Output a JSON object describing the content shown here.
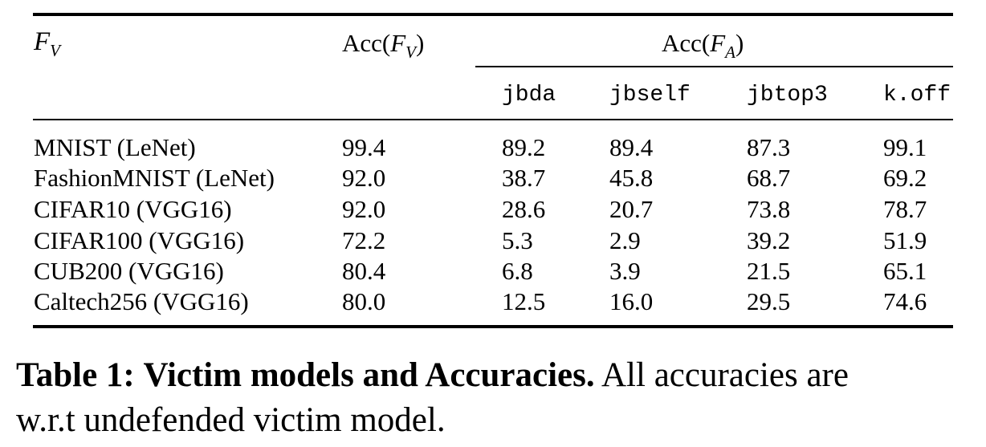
{
  "table": {
    "header": {
      "fv_symbol": "F",
      "fv_sub": "V",
      "acc_fv_prefix": "Acc(",
      "acc_fv_symbol": "F",
      "acc_fv_sub": "V",
      "acc_fv_suffix": ")",
      "acc_fa_prefix": "Acc(",
      "acc_fa_symbol": "F",
      "acc_fa_sub": "A",
      "acc_fa_suffix": ")",
      "methods": [
        "jbda",
        "jbself",
        "jbtop3",
        "k.off"
      ]
    },
    "rows": [
      {
        "model": "MNIST (LeNet)",
        "acc_fv": "99.4",
        "jbda": "89.2",
        "jbself": "89.4",
        "jbtop3": "87.3",
        "koff": "99.1"
      },
      {
        "model": "FashionMNIST (LeNet)",
        "acc_fv": "92.0",
        "jbda": "38.7",
        "jbself": "45.8",
        "jbtop3": "68.7",
        "koff": "69.2"
      },
      {
        "model": "CIFAR10 (VGG16)",
        "acc_fv": "92.0",
        "jbda": "28.6",
        "jbself": "20.7",
        "jbtop3": "73.8",
        "koff": "78.7"
      },
      {
        "model": "CIFAR100 (VGG16)",
        "acc_fv": "72.2",
        "jbda": "5.3",
        "jbself": "2.9",
        "jbtop3": "39.2",
        "koff": "51.9"
      },
      {
        "model": "CUB200 (VGG16)",
        "acc_fv": "80.4",
        "jbda": "6.8",
        "jbself": "3.9",
        "jbtop3": "21.5",
        "koff": "65.1"
      },
      {
        "model": "Caltech256 (VGG16)",
        "acc_fv": "80.0",
        "jbda": "12.5",
        "jbself": "16.0",
        "jbtop3": "29.5",
        "koff": "74.6"
      }
    ]
  },
  "caption": {
    "label": "Table 1:",
    "title": "Victim models and Accuracies.",
    "text_line1": "All accuracies are",
    "text_line2": "w.r.t undefended victim model."
  }
}
